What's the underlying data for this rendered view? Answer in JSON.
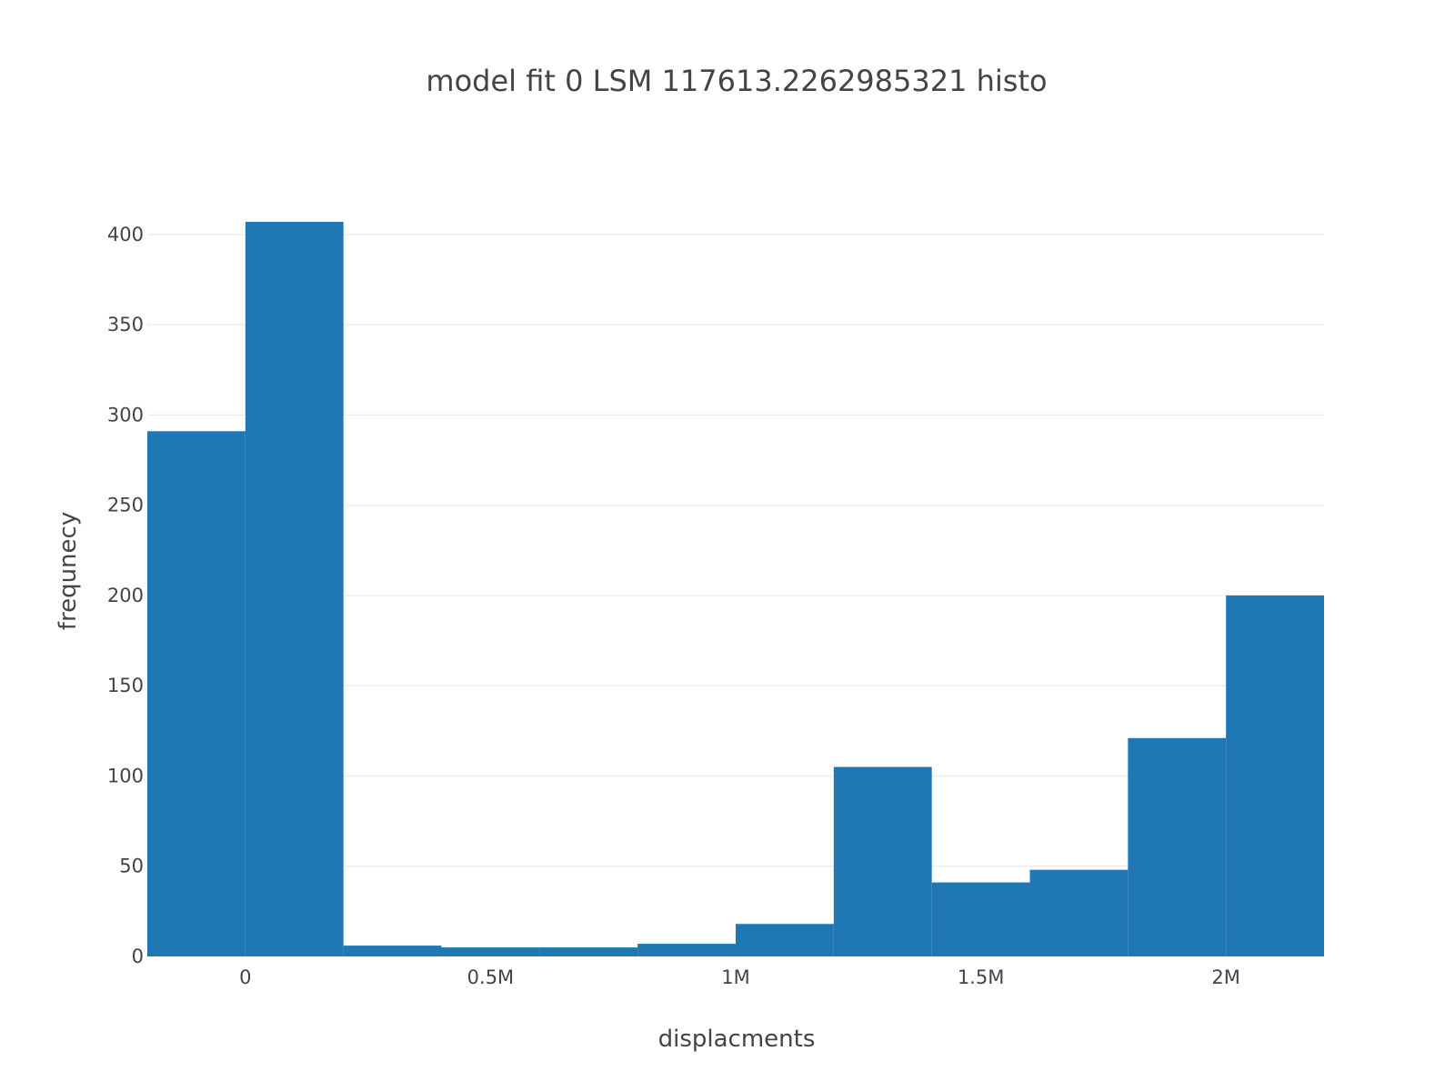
{
  "chart_data": {
    "type": "bar",
    "title": "model fit 0   LSM 117613.2262985321  histo",
    "xlabel": "displacments",
    "ylabel": "frequnecy",
    "bin_size": 200000,
    "bins": [
      {
        "start": -200000,
        "end": 0,
        "value": 291
      },
      {
        "start": 0,
        "end": 200000,
        "value": 407
      },
      {
        "start": 200000,
        "end": 400000,
        "value": 6
      },
      {
        "start": 400000,
        "end": 600000,
        "value": 5
      },
      {
        "start": 600000,
        "end": 800000,
        "value": 5
      },
      {
        "start": 800000,
        "end": 1000000,
        "value": 7
      },
      {
        "start": 1000000,
        "end": 1200000,
        "value": 18
      },
      {
        "start": 1200000,
        "end": 1400000,
        "value": 105
      },
      {
        "start": 1400000,
        "end": 1600000,
        "value": 41
      },
      {
        "start": 1600000,
        "end": 1800000,
        "value": 48
      },
      {
        "start": 1800000,
        "end": 2000000,
        "value": 121
      },
      {
        "start": 2000000,
        "end": 2200000,
        "value": 200
      }
    ],
    "xlim": [
      -200000,
      2200000
    ],
    "ylim": [
      0,
      407
    ],
    "x_ticks": [
      {
        "value": 0,
        "label": "0"
      },
      {
        "value": 500000,
        "label": "0.5M"
      },
      {
        "value": 1000000,
        "label": "1M"
      },
      {
        "value": 1500000,
        "label": "1.5M"
      },
      {
        "value": 2000000,
        "label": "2M"
      }
    ],
    "y_ticks": [
      {
        "value": 0,
        "label": "0"
      },
      {
        "value": 50,
        "label": "50"
      },
      {
        "value": 100,
        "label": "100"
      },
      {
        "value": 150,
        "label": "150"
      },
      {
        "value": 200,
        "label": "200"
      },
      {
        "value": 250,
        "label": "250"
      },
      {
        "value": 300,
        "label": "300"
      },
      {
        "value": 350,
        "label": "350"
      },
      {
        "value": 400,
        "label": "400"
      }
    ],
    "grid": "horizontal",
    "legend": "none",
    "colors": {
      "bar": "#1f77b4",
      "grid": "#eeeeee",
      "text": "#444444",
      "background": "#ffffff"
    }
  }
}
